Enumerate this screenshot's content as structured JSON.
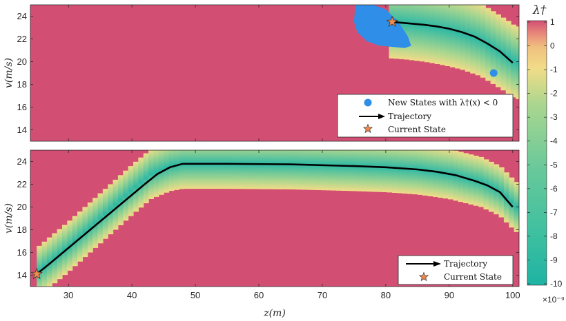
{
  "colors": {
    "background_field": "#d24f73",
    "new_states": "#2f8fe8",
    "trajectory": "#000000",
    "current_state": "#f08a4b",
    "colormap": [
      "#1eb3a3",
      "#3fc0a0",
      "#6bc99a",
      "#a9d68f",
      "#f1dc88",
      "#f0c07f",
      "#e88a7a",
      "#d24f73"
    ]
  },
  "chart_data": [
    {
      "type": "heatmap",
      "panel": "top",
      "xlim": [
        24,
        101
      ],
      "ylim": [
        13,
        25
      ],
      "xticks": [
        30,
        40,
        50,
        60,
        70,
        80,
        90,
        100
      ],
      "yticks": [
        14,
        16,
        18,
        20,
        22,
        24
      ],
      "ylabel": "v(m/s)",
      "band": {
        "x": [
          80.5,
          83,
          86,
          89,
          92,
          95,
          97,
          99,
          100.5
        ],
        "center_v": [
          23.5,
          23.4,
          23.2,
          22.9,
          22.5,
          21.9,
          21.2,
          20.5,
          19.9
        ],
        "halfwidth_v": 3.2
      },
      "trajectory": {
        "x": [
          81,
          83,
          86,
          88,
          90,
          92,
          94,
          96,
          98,
          100
        ],
        "v": [
          23.5,
          23.4,
          23.25,
          23.1,
          22.9,
          22.6,
          22.2,
          21.6,
          20.9,
          19.9
        ]
      },
      "new_states_with_negative_lambda": {
        "region": {
          "x": [
            75.2,
            76,
            78,
            80,
            82,
            83.5,
            84,
            83,
            81,
            79,
            77,
            75.5,
            75,
            75.2
          ],
          "v": [
            25,
            25,
            25,
            24.6,
            23.5,
            22.2,
            21.4,
            21.2,
            21.3,
            21.4,
            21.8,
            22.6,
            23.5,
            25
          ]
        },
        "points": [
          {
            "x": 97,
            "v": 19
          }
        ]
      },
      "current_state": {
        "x": 81,
        "v": 23.5
      },
      "legend": {
        "position": "bottom-right",
        "entries": [
          "New States with λ†(x) < 0",
          "Trajectory",
          "Current State"
        ]
      }
    },
    {
      "type": "heatmap",
      "panel": "bottom",
      "xlim": [
        24,
        101
      ],
      "ylim": [
        13,
        25
      ],
      "xticks": [
        30,
        40,
        50,
        60,
        70,
        80,
        90,
        100
      ],
      "yticks": [
        14,
        16,
        18,
        20,
        22,
        24
      ],
      "xlabel": "z(m)",
      "ylabel": "v(m/s)",
      "band": {
        "x": [
          25,
          30,
          35,
          40,
          43,
          46,
          48,
          55,
          65,
          75,
          80,
          85,
          90,
          95,
          98,
          100.5
        ],
        "center_v": [
          14.2,
          16.5,
          19,
          21.5,
          22.9,
          23.6,
          23.8,
          23.8,
          23.75,
          23.6,
          23.5,
          23.3,
          22.9,
          22.2,
          21.4,
          20
        ],
        "halfwidth_v": 2.2
      },
      "trajectory": {
        "x": [
          25,
          27,
          30,
          33,
          36,
          39,
          42,
          44,
          46,
          48,
          55,
          65,
          75,
          80,
          85,
          88,
          91,
          94,
          96,
          98,
          100
        ],
        "v": [
          14.1,
          15,
          16.4,
          17.8,
          19.2,
          20.6,
          22,
          22.9,
          23.5,
          23.8,
          23.8,
          23.75,
          23.6,
          23.5,
          23.3,
          23.1,
          22.8,
          22.3,
          21.9,
          21.3,
          20
        ]
      },
      "current_state": {
        "x": 25,
        "v": 14.1
      },
      "legend": {
        "position": "bottom-right",
        "entries": [
          "Trajectory",
          "Current State"
        ]
      }
    }
  ],
  "colorbar": {
    "title": "λ†",
    "ticks": [
      "1",
      "0",
      "-1",
      "-2",
      "-3",
      "-4",
      "-5",
      "-6",
      "-7",
      "-8",
      "-9",
      "-10"
    ],
    "exponent": "×10⁻⁹"
  }
}
